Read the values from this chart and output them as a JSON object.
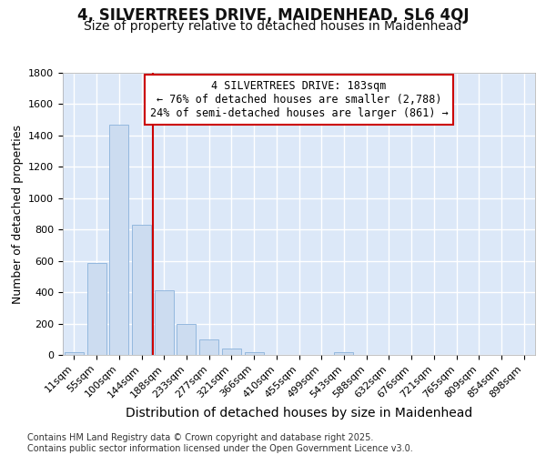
{
  "title": "4, SILVERTREES DRIVE, MAIDENHEAD, SL6 4QJ",
  "subtitle": "Size of property relative to detached houses in Maidenhead",
  "xlabel": "Distribution of detached houses by size in Maidenhead",
  "ylabel": "Number of detached properties",
  "categories": [
    "11sqm",
    "55sqm",
    "100sqm",
    "144sqm",
    "188sqm",
    "233sqm",
    "277sqm",
    "321sqm",
    "366sqm",
    "410sqm",
    "455sqm",
    "499sqm",
    "543sqm",
    "588sqm",
    "632sqm",
    "676sqm",
    "721sqm",
    "765sqm",
    "809sqm",
    "854sqm",
    "898sqm"
  ],
  "bar_heights": [
    20,
    585,
    1470,
    830,
    415,
    200,
    100,
    40,
    20,
    0,
    0,
    0,
    15,
    0,
    0,
    0,
    0,
    0,
    0,
    0,
    0
  ],
  "bar_color": "#ccdcf0",
  "bar_edge_color": "#94b8de",
  "background_color": "#dce8f8",
  "grid_color": "#ffffff",
  "vline_color": "#cc0000",
  "vline_position": 3.5,
  "annotation_text": "4 SILVERTREES DRIVE: 183sqm\n← 76% of detached houses are smaller (2,788)\n24% of semi-detached houses are larger (861) →",
  "annotation_box_facecolor": "#ffffff",
  "annotation_box_edgecolor": "#cc0000",
  "ylim": [
    0,
    1800
  ],
  "yticks": [
    0,
    200,
    400,
    600,
    800,
    1000,
    1200,
    1400,
    1600,
    1800
  ],
  "footer_line1": "Contains HM Land Registry data © Crown copyright and database right 2025.",
  "footer_line2": "Contains public sector information licensed under the Open Government Licence v3.0.",
  "title_fontsize": 12,
  "subtitle_fontsize": 10,
  "tick_fontsize": 8,
  "ylabel_fontsize": 9,
  "xlabel_fontsize": 10,
  "annotation_fontsize": 8.5,
  "footer_fontsize": 7
}
